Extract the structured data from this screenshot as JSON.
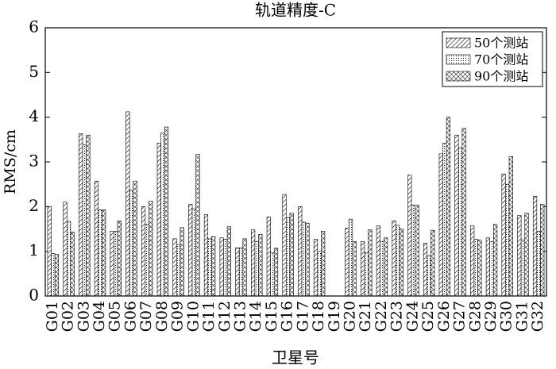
{
  "chart_data": {
    "type": "bar",
    "title": "轨道精度-C",
    "y_label": "RMS/cm",
    "x_label": "卫星号",
    "categories": [
      "G01",
      "G02",
      "G03",
      "G04",
      "G05",
      "G06",
      "G07",
      "G08",
      "G09",
      "G10",
      "G11",
      "G12",
      "G13",
      "G14",
      "G15",
      "G16",
      "G17",
      "G18",
      "G19",
      "G20",
      "G21",
      "G22",
      "G23",
      "G24",
      "G25",
      "G26",
      "G27",
      "G28",
      "G29",
      "G30",
      "G31",
      "G32"
    ],
    "series": [
      {
        "name": "50个测站",
        "color": "#000000",
        "hatch": "diagonal",
        "values": [
          2.0,
          2.1,
          3.63,
          2.57,
          1.45,
          4.12,
          2.0,
          3.42,
          1.28,
          2.05,
          1.82,
          1.3,
          1.08,
          1.48,
          1.77,
          2.27,
          2.0,
          1.27,
          null,
          1.52,
          1.22,
          1.57,
          1.68,
          2.7,
          1.18,
          3.18,
          3.6,
          1.57,
          1.3,
          2.73,
          1.8,
          2.23
        ]
      },
      {
        "name": "70个测站",
        "color": "#000000",
        "hatch": "dotted",
        "values": [
          0.95,
          1.67,
          3.38,
          1.93,
          1.45,
          2.37,
          1.6,
          3.65,
          1.15,
          1.95,
          1.28,
          1.27,
          1.08,
          1.22,
          0.97,
          1.75,
          1.65,
          1.0,
          null,
          1.72,
          0.97,
          1.22,
          1.58,
          2.03,
          0.9,
          3.42,
          3.32,
          1.27,
          1.22,
          2.5,
          1.25,
          1.45
        ]
      },
      {
        "name": "90个测站",
        "color": "#000000",
        "hatch": "cross",
        "values": [
          0.93,
          1.43,
          3.6,
          1.93,
          1.68,
          2.57,
          2.12,
          3.78,
          1.53,
          3.17,
          1.33,
          1.55,
          1.28,
          1.38,
          1.07,
          1.85,
          1.63,
          1.45,
          null,
          1.22,
          1.48,
          1.3,
          1.5,
          2.03,
          1.47,
          4.0,
          3.75,
          1.25,
          1.6,
          3.12,
          1.85,
          2.05
        ]
      }
    ],
    "ylim": [
      0,
      6
    ],
    "yticks": [
      0,
      1,
      2,
      3,
      4,
      5,
      6
    ],
    "legend": "upper right"
  }
}
